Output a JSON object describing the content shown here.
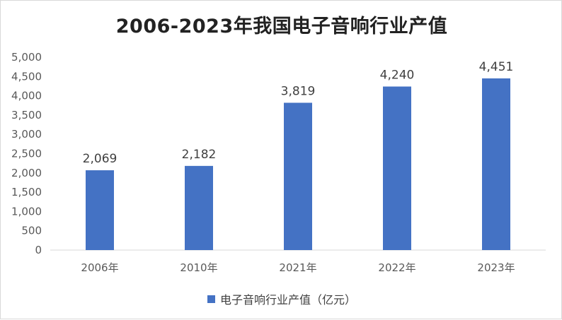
{
  "chart_data": {
    "type": "bar",
    "title": "2006-2023年我国电子音响行业产值",
    "categories": [
      "2006年",
      "2010年",
      "2021年",
      "2022年",
      "2023年"
    ],
    "series": [
      {
        "name": "电子音响行业产值（亿元）",
        "values": [
          2069,
          2182,
          3819,
          4240,
          4451
        ],
        "labels": [
          "2,069",
          "2,182",
          "3,819",
          "4,240",
          "4,451"
        ],
        "color": "#4472c4"
      }
    ],
    "ylim": [
      0,
      5000
    ],
    "yticks": [
      0,
      500,
      1000,
      1500,
      2000,
      2500,
      3000,
      3500,
      4000,
      4500,
      5000
    ],
    "ytick_labels": [
      "0",
      "500",
      "1,000",
      "1,500",
      "2,000",
      "2,500",
      "3,000",
      "3,500",
      "4,000",
      "4,500",
      "5,000"
    ],
    "grid": false,
    "legend_position": "bottom",
    "xlabel": "",
    "ylabel": ""
  }
}
